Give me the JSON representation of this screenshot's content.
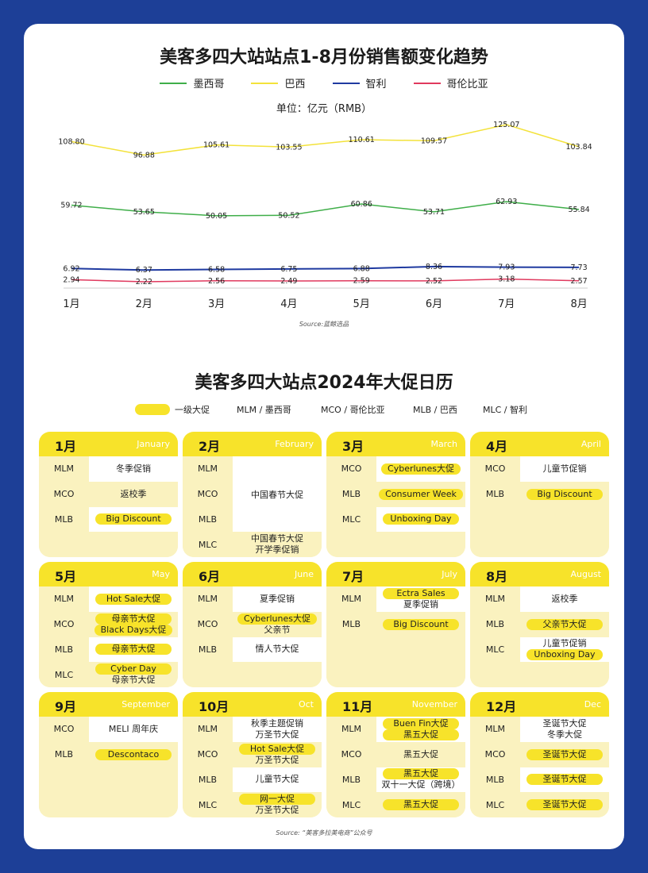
{
  "chart_title": "美客多四大站站点1-8月份销售额变化趋势",
  "unit": "单位：亿元（RMB）",
  "chart_source": "Source:蓝鲸选品",
  "chart_data": {
    "type": "line",
    "title": "美客多四大站站点1-8月份销售额变化趋势",
    "categories": [
      "1月",
      "2月",
      "3月",
      "4月",
      "5月",
      "6月",
      "7月",
      "8月"
    ],
    "series": [
      {
        "name": "墨西哥",
        "color": "#3fae49",
        "values": [
          59.72,
          53.65,
          50.05,
          50.52,
          60.86,
          53.71,
          62.93,
          55.84
        ]
      },
      {
        "name": "巴西",
        "color": "#f3e23a",
        "values": [
          108.8,
          96.88,
          105.61,
          103.55,
          110.61,
          109.57,
          125.07,
          103.84
        ]
      },
      {
        "name": "智利",
        "color": "#1f3aa0",
        "values": [
          6.92,
          6.37,
          6.58,
          6.75,
          6.88,
          8.36,
          7.93,
          7.73
        ]
      },
      {
        "name": "哥伦比亚",
        "color": "#e0395e",
        "values": [
          2.94,
          2.22,
          2.56,
          2.49,
          2.59,
          2.52,
          3.18,
          2.57
        ]
      }
    ],
    "legend": "top-center",
    "grid": false
  },
  "calendar_title": "美客多四大站点2024年大促日历",
  "calendar_legend": {
    "key": "一级大促",
    "items": [
      "MLM / 墨西哥",
      "MCO / 哥伦比亚",
      "MLB / 巴西",
      "MLC / 智利"
    ]
  },
  "calendar_source": "Source: “美客多拉美电商”公众号",
  "months": [
    {
      "cn": "1月",
      "en": "January",
      "rows": [
        {
          "code": "MLM",
          "vals": [
            {
              "t": "冬季促销",
              "hl": false
            }
          ]
        },
        {
          "code": "MCO",
          "vals": [
            {
              "t": "返校季",
              "hl": false
            }
          ]
        },
        {
          "code": "MLB",
          "vals": [
            {
              "t": "Big Discount",
              "hl": true
            }
          ]
        },
        {
          "code": "",
          "vals": []
        }
      ]
    },
    {
      "cn": "2月",
      "en": "February",
      "span": "中国春节大促",
      "rows": [
        {
          "code": "MLM",
          "vals": []
        },
        {
          "code": "MCO",
          "vals": []
        },
        {
          "code": "MLB",
          "vals": []
        },
        {
          "code": "MLC",
          "vals": [
            {
              "t": "中国春节大促",
              "hl": false
            },
            {
              "t": "开学季促销",
              "hl": false
            }
          ]
        }
      ]
    },
    {
      "cn": "3月",
      "en": "March",
      "rows": [
        {
          "code": "MCO",
          "vals": [
            {
              "t": "Cyberlunes大促",
              "hl": true
            }
          ]
        },
        {
          "code": "MLB",
          "vals": [
            {
              "t": "Consumer Week",
              "hl": true
            }
          ]
        },
        {
          "code": "MLC",
          "vals": [
            {
              "t": "Unboxing Day",
              "hl": true
            }
          ]
        },
        {
          "code": "",
          "vals": []
        }
      ]
    },
    {
      "cn": "4月",
      "en": "April",
      "rows": [
        {
          "code": "MCO",
          "vals": [
            {
              "t": "儿童节促销",
              "hl": false
            }
          ]
        },
        {
          "code": "MLB",
          "vals": [
            {
              "t": "Big Discount",
              "hl": true
            }
          ]
        },
        {
          "code": "",
          "vals": []
        },
        {
          "code": "",
          "vals": []
        }
      ]
    },
    {
      "cn": "5月",
      "en": "May",
      "rows": [
        {
          "code": "MLM",
          "vals": [
            {
              "t": "Hot Sale大促",
              "hl": true
            }
          ]
        },
        {
          "code": "MCO",
          "vals": [
            {
              "t": "母亲节大促",
              "hl": true
            },
            {
              "t": "Black Days大促",
              "hl": true
            }
          ]
        },
        {
          "code": "MLB",
          "vals": [
            {
              "t": "母亲节大促",
              "hl": true
            }
          ]
        },
        {
          "code": "MLC",
          "vals": [
            {
              "t": "Cyber Day",
              "hl": true
            },
            {
              "t": "母亲节大促",
              "hl": false
            }
          ]
        }
      ]
    },
    {
      "cn": "6月",
      "en": "June",
      "rows": [
        {
          "code": "MLM",
          "vals": [
            {
              "t": "夏季促销",
              "hl": false
            }
          ]
        },
        {
          "code": "MCO",
          "vals": [
            {
              "t": "Cyberlunes大促",
              "hl": true
            },
            {
              "t": "父亲节",
              "hl": false
            }
          ]
        },
        {
          "code": "MLB",
          "vals": [
            {
              "t": "情人节大促",
              "hl": false
            }
          ]
        },
        {
          "code": "",
          "vals": []
        }
      ]
    },
    {
      "cn": "7月",
      "en": "July",
      "rows": [
        {
          "code": "MLM",
          "vals": [
            {
              "t": "Ectra Sales",
              "hl": true
            },
            {
              "t": "夏季促销",
              "hl": false
            }
          ]
        },
        {
          "code": "MLB",
          "vals": [
            {
              "t": "Big Discount",
              "hl": true
            }
          ]
        },
        {
          "code": "",
          "vals": []
        },
        {
          "code": "",
          "vals": []
        }
      ]
    },
    {
      "cn": "8月",
      "en": "August",
      "rows": [
        {
          "code": "MLM",
          "vals": [
            {
              "t": "返校季",
              "hl": false
            }
          ]
        },
        {
          "code": "MLB",
          "vals": [
            {
              "t": "父亲节大促",
              "hl": true
            }
          ]
        },
        {
          "code": "MLC",
          "vals": [
            {
              "t": "儿童节促销",
              "hl": false
            },
            {
              "t": "Unboxing Day",
              "hl": true
            }
          ]
        },
        {
          "code": "",
          "vals": []
        }
      ]
    },
    {
      "cn": "9月",
      "en": "September",
      "rows": [
        {
          "code": "MCO",
          "vals": [
            {
              "t": "MELI 周年庆",
              "hl": false
            }
          ]
        },
        {
          "code": "MLB",
          "vals": [
            {
              "t": "Descontaco",
              "hl": true
            }
          ]
        },
        {
          "code": "",
          "vals": []
        },
        {
          "code": "",
          "vals": []
        }
      ]
    },
    {
      "cn": "10月",
      "en": "Oct",
      "rows": [
        {
          "code": "MLM",
          "vals": [
            {
              "t": "秋季主题促销",
              "hl": false
            },
            {
              "t": "万圣节大促",
              "hl": false
            }
          ]
        },
        {
          "code": "MCO",
          "vals": [
            {
              "t": "Hot Sale大促",
              "hl": true
            },
            {
              "t": "万圣节大促",
              "hl": false
            }
          ]
        },
        {
          "code": "MLB",
          "vals": [
            {
              "t": "儿童节大促",
              "hl": false
            }
          ]
        },
        {
          "code": "MLC",
          "vals": [
            {
              "t": "网一大促",
              "hl": true
            },
            {
              "t": "万圣节大促",
              "hl": false
            }
          ]
        }
      ]
    },
    {
      "cn": "11月",
      "en": "November",
      "rows": [
        {
          "code": "MLM",
          "vals": [
            {
              "t": "Buen Fin大促",
              "hl": true
            },
            {
              "t": "黑五大促",
              "hl": true
            }
          ]
        },
        {
          "code": "MCO",
          "vals": [
            {
              "t": "黑五大促",
              "hl": false
            }
          ]
        },
        {
          "code": "MLB",
          "vals": [
            {
              "t": "黑五大促",
              "hl": true
            },
            {
              "t": "双十一大促（跨境）",
              "hl": false
            }
          ]
        },
        {
          "code": "MLC",
          "vals": [
            {
              "t": "黑五大促",
              "hl": true
            }
          ]
        }
      ]
    },
    {
      "cn": "12月",
      "en": "Dec",
      "rows": [
        {
          "code": "MLM",
          "vals": [
            {
              "t": "圣诞节大促",
              "hl": false
            },
            {
              "t": "冬季大促",
              "hl": false
            }
          ]
        },
        {
          "code": "MCO",
          "vals": [
            {
              "t": "圣诞节大促",
              "hl": true
            }
          ]
        },
        {
          "code": "MLB",
          "vals": [
            {
              "t": "圣诞节大促",
              "hl": true
            }
          ]
        },
        {
          "code": "MLC",
          "vals": [
            {
              "t": "圣诞节大促",
              "hl": true
            }
          ]
        }
      ]
    }
  ]
}
